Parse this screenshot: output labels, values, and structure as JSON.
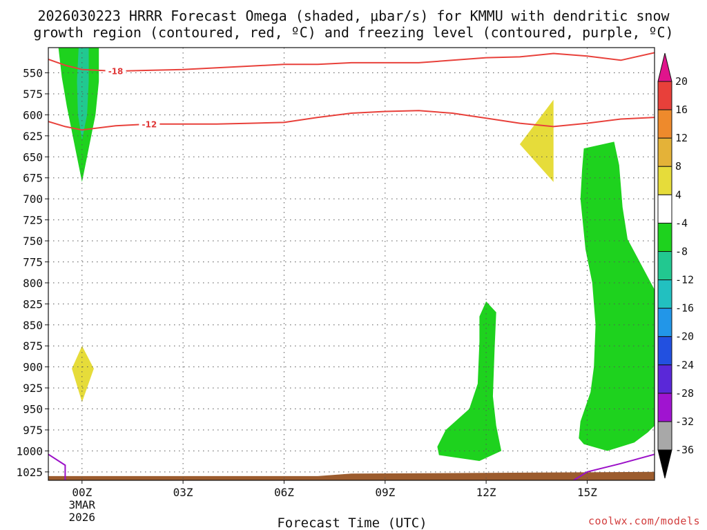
{
  "title": {
    "line1": "2026030223 HRRR Forecast Omega (shaded, μbar/s) for KMMU with dendritic snow",
    "line2": "growth region (contoured, red, ºC) and freezing level (contoured, purple, ºC)"
  },
  "credit": "coolwx.com/models",
  "chart_data": {
    "type": "heatmap",
    "xlabel": "Forecast Time (UTC)",
    "ylabel": "",
    "xlim": [
      -1,
      17
    ],
    "ylim": [
      1035,
      520
    ],
    "y_ticks": [
      550,
      575,
      600,
      625,
      650,
      675,
      700,
      725,
      750,
      775,
      800,
      825,
      850,
      875,
      900,
      925,
      950,
      975,
      1000,
      1025
    ],
    "x_ticks": [
      {
        "x": 0,
        "label": "00Z",
        "sub1": "3MAR",
        "sub2": "2026"
      },
      {
        "x": 3,
        "label": "03Z"
      },
      {
        "x": 6,
        "label": "06Z"
      },
      {
        "x": 9,
        "label": "09Z"
      },
      {
        "x": 12,
        "label": "12Z"
      },
      {
        "x": 15,
        "label": "15Z"
      }
    ],
    "grid": true,
    "colorbar": {
      "levels": [
        20,
        16,
        12,
        8,
        4,
        -4,
        -8,
        -12,
        -16,
        -20,
        -24,
        -28,
        -32,
        -36
      ],
      "bins": [
        {
          "from": 16,
          "to": 20,
          "color": "#e8403a"
        },
        {
          "from": 12,
          "to": 16,
          "color": "#ee8a2c"
        },
        {
          "from": 8,
          "to": 12,
          "color": "#e4b238"
        },
        {
          "from": 4,
          "to": 8,
          "color": "#e6dc3a"
        },
        {
          "from": -4,
          "to": 4,
          "color": "#ffffff"
        },
        {
          "from": -8,
          "to": -4,
          "color": "#1ed21e"
        },
        {
          "from": -12,
          "to": -8,
          "color": "#22c890"
        },
        {
          "from": -16,
          "to": -12,
          "color": "#22c0c0"
        },
        {
          "from": -20,
          "to": -16,
          "color": "#2296e8"
        },
        {
          "from": -24,
          "to": -20,
          "color": "#2250e0"
        },
        {
          "from": -28,
          "to": -24,
          "color": "#5a28d8"
        },
        {
          "from": -32,
          "to": -28,
          "color": "#a014d0"
        },
        {
          "from": -36,
          "to": -32,
          "color": "#a8a8a8"
        }
      ],
      "top_arrow_color": "#e0148c",
      "bottom_arrow_color": "#000000"
    },
    "shaded_regions": [
      {
        "name": "green-col-00z",
        "color": "#1ed21e",
        "points": [
          [
            -0.7,
            520
          ],
          [
            0.5,
            520
          ],
          [
            0.5,
            560
          ],
          [
            0.4,
            600
          ],
          [
            0.2,
            640
          ],
          [
            0,
            680
          ],
          [
            -0.2,
            640
          ],
          [
            -0.45,
            590
          ],
          [
            -0.6,
            555
          ]
        ]
      },
      {
        "name": "teal-col-00z",
        "color": "#22c890",
        "points": [
          [
            -0.1,
            520
          ],
          [
            0.2,
            520
          ],
          [
            0.2,
            560
          ],
          [
            0.15,
            600
          ],
          [
            0,
            630
          ],
          [
            -0.12,
            600
          ],
          [
            -0.15,
            560
          ]
        ]
      },
      {
        "name": "yellow-00z",
        "color": "#e6dc3a",
        "points": [
          [
            0,
            875
          ],
          [
            0.35,
            902
          ],
          [
            0,
            942
          ],
          [
            -0.3,
            902
          ]
        ]
      },
      {
        "name": "yellow-13z",
        "color": "#e6dc3a",
        "points": [
          [
            14,
            582
          ],
          [
            14,
            680
          ],
          [
            13,
            635
          ]
        ]
      },
      {
        "name": "green-12z",
        "color": "#1ed21e",
        "points": [
          [
            12,
            822
          ],
          [
            12.3,
            835
          ],
          [
            12.25,
            880
          ],
          [
            12.2,
            935
          ],
          [
            12.3,
            970
          ],
          [
            12.45,
            1000
          ],
          [
            11.8,
            1012
          ],
          [
            10.6,
            1005
          ],
          [
            10.55,
            995
          ],
          [
            10.8,
            975
          ],
          [
            11.5,
            950
          ],
          [
            11.75,
            920
          ],
          [
            11.8,
            870
          ],
          [
            11.8,
            840
          ]
        ]
      },
      {
        "name": "green-15z",
        "color": "#1ed21e",
        "points": [
          [
            15.8,
            632
          ],
          [
            15.95,
            660
          ],
          [
            16.05,
            710
          ],
          [
            16.2,
            748
          ],
          [
            16.6,
            778
          ],
          [
            17,
            808
          ],
          [
            17,
            970
          ],
          [
            16.8,
            978
          ],
          [
            16.4,
            990
          ],
          [
            15.6,
            1000
          ],
          [
            14.9,
            992
          ],
          [
            14.75,
            985
          ],
          [
            14.8,
            965
          ],
          [
            15.1,
            930
          ],
          [
            15.2,
            900
          ],
          [
            15.25,
            850
          ],
          [
            15.15,
            800
          ],
          [
            14.95,
            760
          ],
          [
            14.8,
            700
          ],
          [
            14.85,
            665
          ],
          [
            14.9,
            640
          ]
        ]
      }
    ],
    "red_contours": [
      {
        "label": "-18",
        "label_x": 1,
        "points": [
          [
            -1,
            534
          ],
          [
            -0.5,
            541
          ],
          [
            0,
            546
          ],
          [
            1,
            548
          ],
          [
            2,
            547
          ],
          [
            3,
            546
          ],
          [
            4,
            544
          ],
          [
            5,
            542
          ],
          [
            6,
            540
          ],
          [
            7,
            540
          ],
          [
            8,
            538
          ],
          [
            9,
            538
          ],
          [
            10,
            538
          ],
          [
            11,
            535
          ],
          [
            12,
            532
          ],
          [
            13,
            531
          ],
          [
            14,
            527
          ],
          [
            15,
            530
          ],
          [
            16,
            535
          ],
          [
            17,
            526
          ]
        ]
      },
      {
        "label": "-12",
        "label_x": 2,
        "points": [
          [
            -1,
            608
          ],
          [
            -0.5,
            614
          ],
          [
            0,
            618
          ],
          [
            1,
            613
          ],
          [
            2,
            611
          ],
          [
            3,
            611
          ],
          [
            4,
            611
          ],
          [
            5,
            610
          ],
          [
            6,
            609
          ],
          [
            7,
            603
          ],
          [
            8,
            598
          ],
          [
            9,
            596
          ],
          [
            10,
            595
          ],
          [
            11,
            598
          ],
          [
            12,
            604
          ],
          [
            13,
            610
          ],
          [
            14,
            614
          ],
          [
            15,
            610
          ],
          [
            16,
            605
          ],
          [
            17,
            603
          ]
        ]
      }
    ],
    "freezing_contours": [
      {
        "points": [
          [
            -1,
            1004
          ],
          [
            -0.5,
            1017
          ],
          [
            -0.5,
            1035
          ]
        ]
      },
      {
        "points": [
          [
            14.6,
            1035
          ],
          [
            15,
            1025
          ],
          [
            16,
            1015
          ],
          [
            17,
            1004
          ]
        ]
      }
    ],
    "terrain": {
      "color": "#9c5c2e",
      "points": [
        [
          -1,
          1030
        ],
        [
          7,
          1030
        ],
        [
          8,
          1027
        ],
        [
          17,
          1025
        ],
        [
          17,
          1035
        ],
        [
          -1,
          1035
        ]
      ]
    }
  }
}
